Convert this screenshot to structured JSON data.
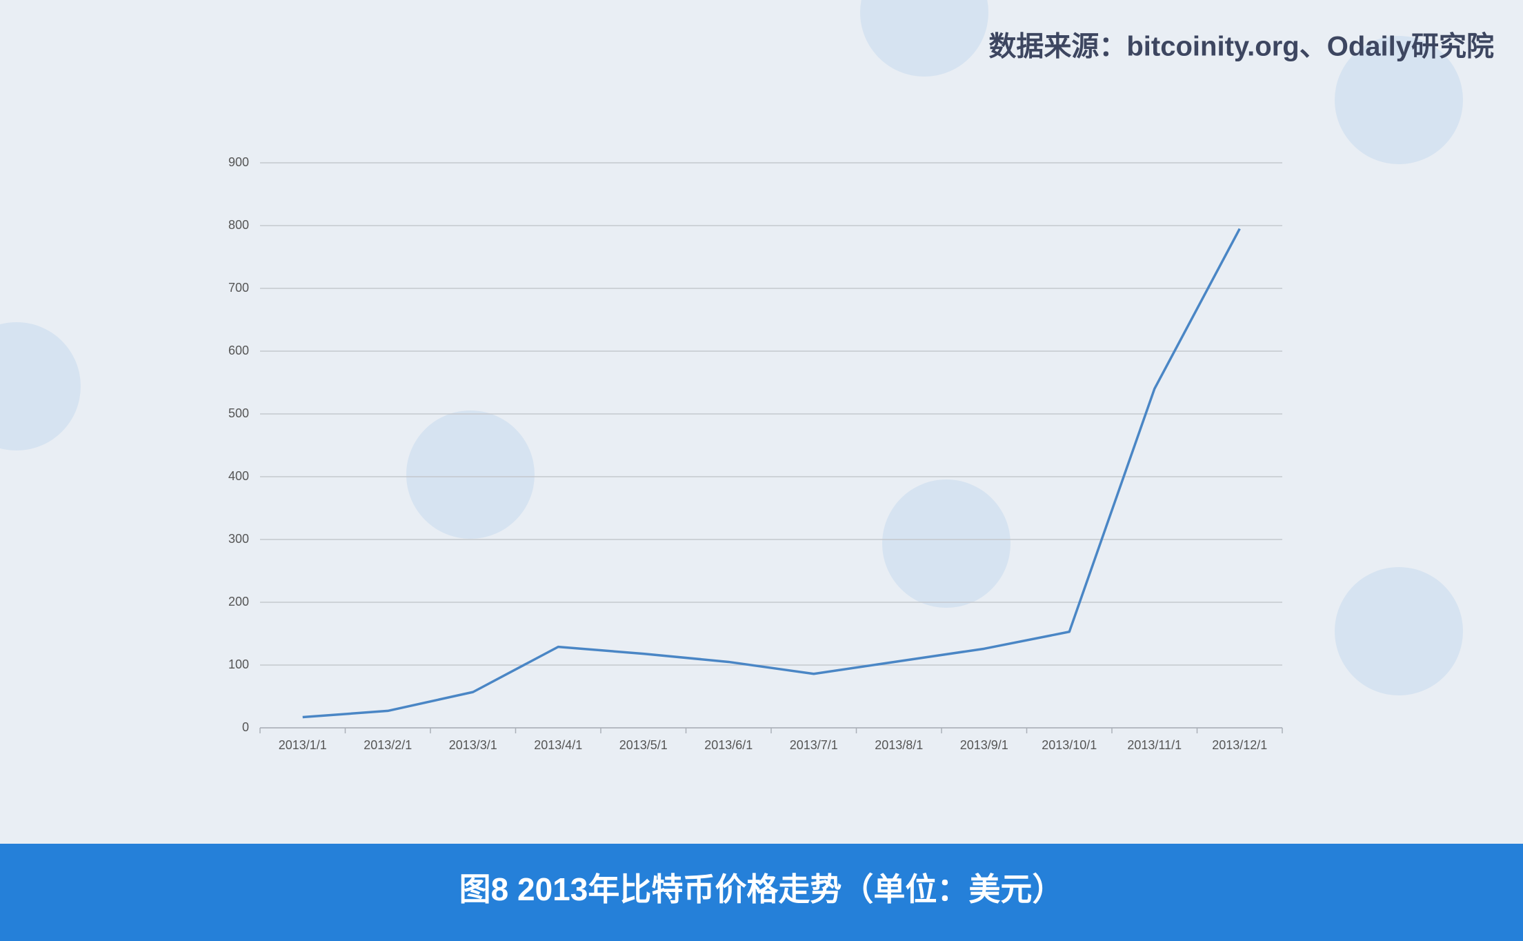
{
  "chart_data": {
    "type": "line",
    "source": "数据来源：bitcoinity.org、Odaily研究院",
    "caption": "图8  2013年比特币价格走势（单位：美元）",
    "categories": [
      "2013/1/1",
      "2013/2/1",
      "2013/3/1",
      "2013/4/1",
      "2013/5/1",
      "2013/6/1",
      "2013/7/1",
      "2013/8/1",
      "2013/9/1",
      "2013/10/1",
      "2013/11/1",
      "2013/12/1"
    ],
    "values": [
      17,
      27,
      57,
      129,
      118,
      105,
      86,
      106,
      126,
      153,
      540,
      795
    ],
    "color": "#4a86c5",
    "ylim": [
      0,
      900
    ],
    "yticks": [
      0,
      100,
      200,
      300,
      400,
      500,
      600,
      700,
      800,
      900
    ],
    "grid": true
  }
}
